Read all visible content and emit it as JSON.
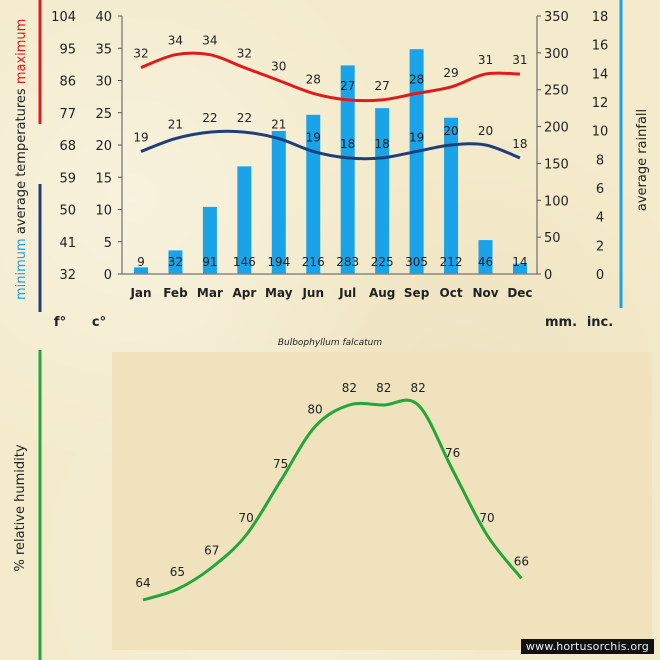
{
  "chart_data": [
    {
      "type": "bar+line",
      "categories": [
        "Jan",
        "Feb",
        "Mar",
        "Apr",
        "May",
        "Jun",
        "Jul",
        "Aug",
        "Sep",
        "Oct",
        "Nov",
        "Dec"
      ],
      "rainfall_mm": [
        9,
        32,
        91,
        146,
        194,
        216,
        283,
        225,
        305,
        212,
        46,
        14
      ],
      "max_temp_c": [
        32,
        34,
        34,
        32,
        30,
        28,
        27,
        27,
        28,
        29,
        31,
        31
      ],
      "min_temp_c": [
        19,
        21,
        22,
        22,
        21,
        19,
        18,
        18,
        19,
        20,
        20,
        18
      ],
      "series": [
        {
          "name": "maximum",
          "color": "#e01b1b"
        },
        {
          "name": "minimum",
          "color": "#1f3f7a"
        }
      ],
      "bar_color": "#1aa3e8",
      "left_axis_f": {
        "ticks": [
          32,
          41,
          50,
          59,
          68,
          77,
          86,
          95,
          104
        ],
        "unit": "f°"
      },
      "left_axis_c": {
        "ticks": [
          0,
          5,
          10,
          15,
          20,
          25,
          30,
          35,
          40
        ],
        "unit": "c°",
        "range": [
          0,
          40
        ]
      },
      "right_axis_mm": {
        "ticks": [
          0,
          50,
          100,
          150,
          200,
          250,
          300,
          350
        ],
        "unit": "mm.",
        "range": [
          0,
          350
        ]
      },
      "right_axis_inch": {
        "ticks": [
          0,
          2,
          4,
          6,
          8,
          10,
          12,
          14,
          16,
          18
        ],
        "unit": "inc.",
        "range": [
          0,
          18
        ]
      },
      "left_label": {
        "minimum": "minimum",
        "average": "average temperatures",
        "maximum": "maximum"
      },
      "right_label": "average rainfall",
      "title": "Bulbophyllum falcatum"
    },
    {
      "type": "line",
      "values": [
        64,
        65,
        67,
        70,
        75,
        80,
        82,
        82,
        82,
        76,
        70,
        66
      ],
      "line_color": "#22a63a",
      "ylabel": "% relative humidity"
    }
  ],
  "watermark": "www.hortusorchis.org"
}
